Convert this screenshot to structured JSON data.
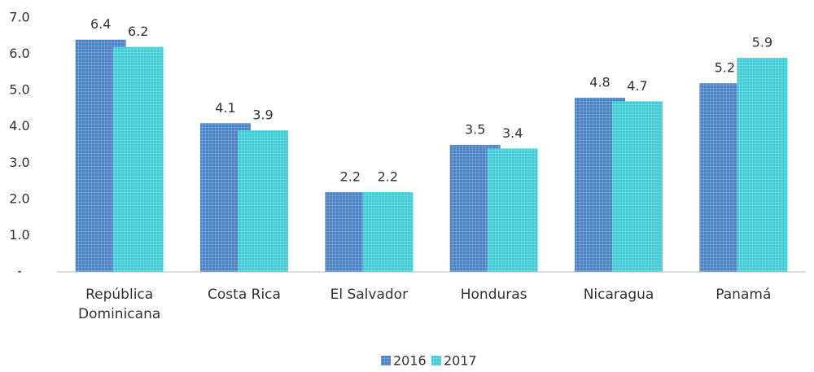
{
  "chart_data": {
    "type": "bar",
    "categories": [
      "República Dominicana",
      "Costa Rica",
      "El Salvador",
      "Honduras",
      "Nicaragua",
      "Panamá"
    ],
    "series": [
      {
        "name": "2016",
        "color": "#4a84c8",
        "values": [
          6.4,
          4.1,
          2.2,
          3.5,
          4.8,
          5.2
        ]
      },
      {
        "name": "2017",
        "color": "#3ccfd8",
        "values": [
          6.2,
          3.9,
          2.2,
          3.4,
          4.7,
          5.9
        ]
      }
    ],
    "ylim": [
      0,
      7
    ],
    "yticks": [
      {
        "value": 0,
        "label": "-"
      },
      {
        "value": 1,
        "label": "1.0"
      },
      {
        "value": 2,
        "label": "2.0"
      },
      {
        "value": 3,
        "label": "3.0"
      },
      {
        "value": 4,
        "label": "4.0"
      },
      {
        "value": 5,
        "label": "5.0"
      },
      {
        "value": 6,
        "label": "6.0"
      },
      {
        "value": 7,
        "label": "7.0"
      }
    ],
    "legend": "bottom"
  }
}
